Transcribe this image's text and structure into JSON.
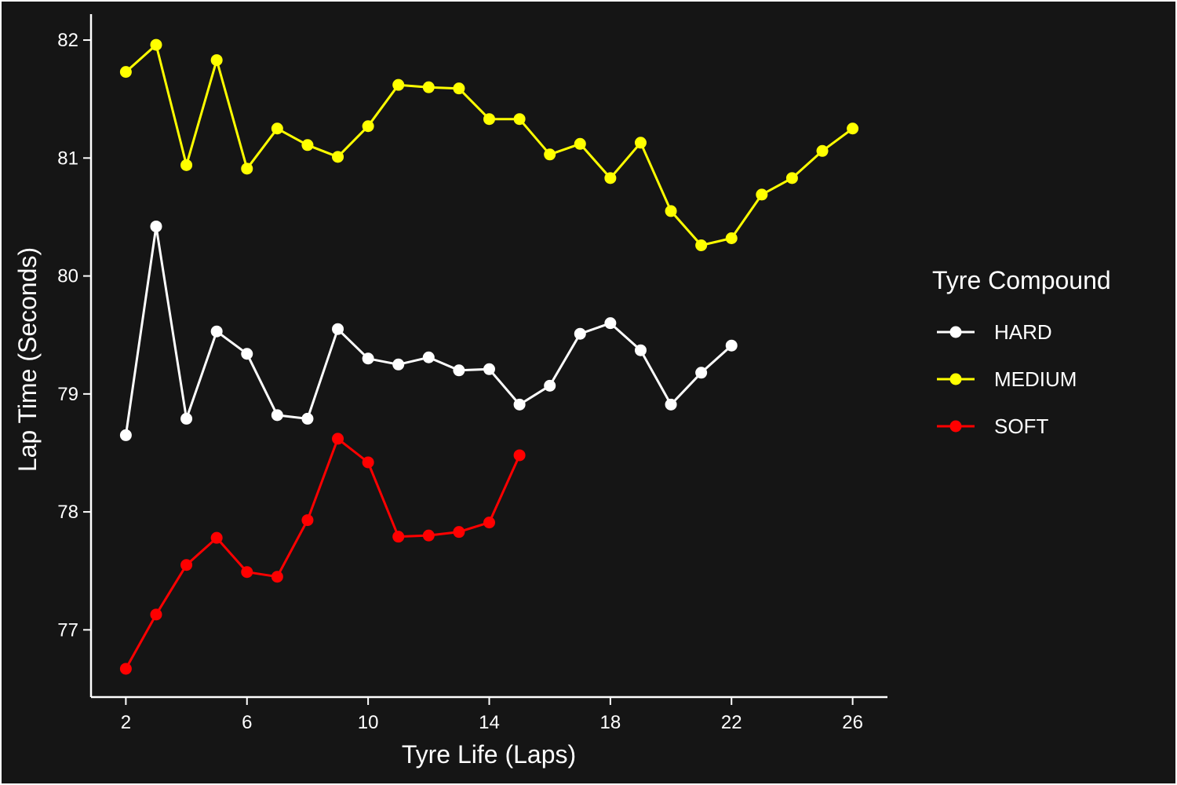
{
  "chart_data": {
    "type": "line",
    "xlabel": "Tyre Life (Laps)",
    "ylabel": "Lap Time (Seconds)",
    "xlim": [
      0.85,
      27.15
    ],
    "ylim": [
      76.43,
      82.22
    ],
    "x_ticks": [
      2,
      6,
      10,
      14,
      18,
      22,
      26
    ],
    "y_ticks": [
      77,
      78,
      79,
      80,
      81,
      82
    ],
    "grid": false,
    "background": "#151515",
    "legend": {
      "title": "Tyre Compound",
      "placement": "right"
    },
    "series": [
      {
        "name": "HARD",
        "color": "#ffffff",
        "x": [
          2,
          3,
          4,
          5,
          6,
          7,
          8,
          9,
          10,
          11,
          12,
          13,
          14,
          15,
          16,
          17,
          18,
          19,
          20,
          21,
          22
        ],
        "values": [
          78.65,
          80.42,
          78.79,
          79.53,
          79.34,
          78.82,
          78.79,
          79.55,
          79.3,
          79.25,
          79.31,
          79.2,
          79.21,
          78.91,
          79.07,
          79.51,
          79.6,
          79.37,
          78.91,
          79.18,
          79.41
        ]
      },
      {
        "name": "MEDIUM",
        "color": "#ffff00",
        "x": [
          2,
          3,
          4,
          5,
          6,
          7,
          8,
          9,
          10,
          11,
          12,
          13,
          14,
          15,
          16,
          17,
          18,
          19,
          20,
          21,
          22,
          23,
          24,
          25,
          26
        ],
        "values": [
          81.73,
          81.96,
          80.94,
          81.83,
          80.91,
          81.25,
          81.11,
          81.01,
          81.27,
          81.62,
          81.6,
          81.59,
          81.33,
          81.33,
          81.03,
          81.12,
          80.83,
          81.13,
          80.55,
          80.26,
          80.32,
          80.69,
          80.83,
          81.06,
          81.25
        ]
      },
      {
        "name": "SOFT",
        "color": "#ff0000",
        "x": [
          2,
          3,
          4,
          5,
          6,
          7,
          8,
          9,
          10,
          11,
          12,
          13,
          14,
          15
        ],
        "values": [
          76.67,
          77.13,
          77.55,
          77.78,
          77.49,
          77.45,
          77.93,
          78.62,
          78.42,
          77.79,
          77.8,
          77.83,
          77.91,
          78.48
        ]
      }
    ]
  }
}
